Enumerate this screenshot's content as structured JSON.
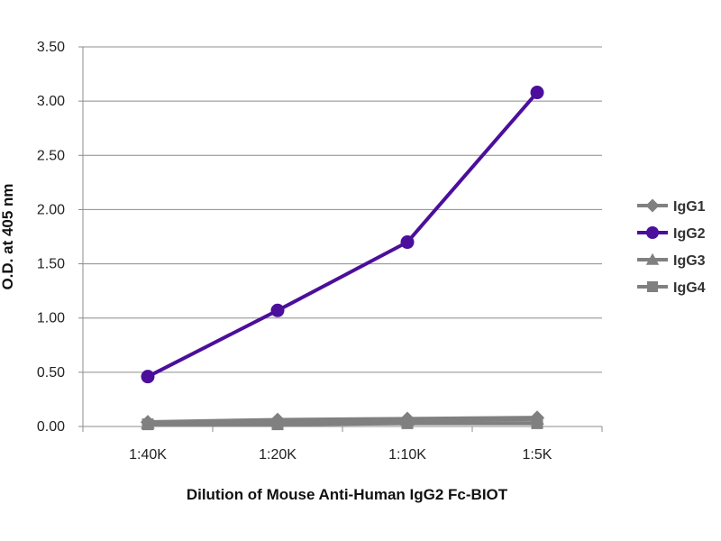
{
  "chart_data": {
    "type": "line",
    "title": "",
    "xlabel": "Dilution of Mouse Anti-Human IgG2 Fc-BIOT",
    "ylabel": "O.D. at 405 nm",
    "categories": [
      "1:40K",
      "1:20K",
      "1:10K",
      "1:5K"
    ],
    "y_ticks": [
      "0.00",
      "0.50",
      "1.00",
      "1.50",
      "2.00",
      "2.50",
      "3.00",
      "3.50"
    ],
    "ylim": [
      0,
      3.5
    ],
    "grid": true,
    "legend_position": "right",
    "series": [
      {
        "name": "IgG1",
        "marker": "diamond",
        "color": "#808080",
        "values": [
          0.04,
          0.06,
          0.07,
          0.08
        ]
      },
      {
        "name": "IgG2",
        "marker": "circle",
        "color": "#4B0F9B",
        "values": [
          0.46,
          1.07,
          1.7,
          3.08
        ]
      },
      {
        "name": "IgG3",
        "marker": "triangle",
        "color": "#808080",
        "values": [
          0.03,
          0.05,
          0.06,
          0.07
        ]
      },
      {
        "name": "IgG4",
        "marker": "square",
        "color": "#808080",
        "values": [
          0.02,
          0.02,
          0.03,
          0.03
        ]
      }
    ]
  }
}
